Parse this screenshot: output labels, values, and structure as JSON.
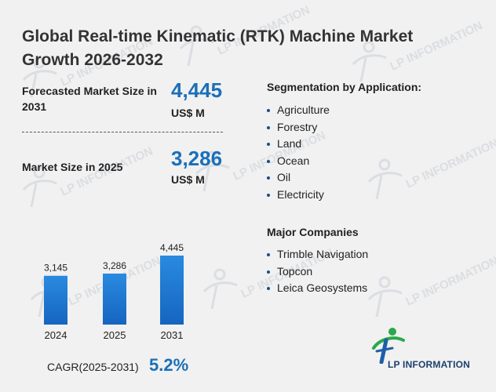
{
  "title": "Global Real-time Kinematic (RTK) Machine Market Growth 2026-2032",
  "forecast": {
    "label": "Forecasted Market Size in 2031",
    "value": "4,445",
    "unit": "US$ M"
  },
  "current": {
    "label": "Market Size in 2025",
    "value": "3,286",
    "unit": "US$ M"
  },
  "segmentation": {
    "title": "Segmentation by Application:",
    "items": [
      "Agriculture",
      "Forestry",
      "Land",
      "Ocean",
      "Oil",
      "Electricity"
    ]
  },
  "companies": {
    "title": "Major Companies",
    "items": [
      "Trimble Navigation",
      "Topcon",
      "Leica Geosystems"
    ]
  },
  "cagr": {
    "label": "CAGR(2025-2031)",
    "value": "5.2%"
  },
  "logo": {
    "text": "LP INFORMATION",
    "watermark_text": "LP INFORMATION"
  },
  "colors": {
    "accent": "#1b6fb8",
    "bar_top": "#2a8ae0",
    "bar_bottom": "#1565c0"
  },
  "chart_data": {
    "type": "bar",
    "categories": [
      "2024",
      "2025",
      "2031"
    ],
    "values": [
      3145,
      3286,
      4445
    ],
    "value_labels": [
      "3,145",
      "3,286",
      "4,445"
    ],
    "title": "",
    "xlabel": "",
    "ylabel": "",
    "ylim": [
      0,
      4445
    ],
    "grid": false,
    "legend": "none"
  }
}
